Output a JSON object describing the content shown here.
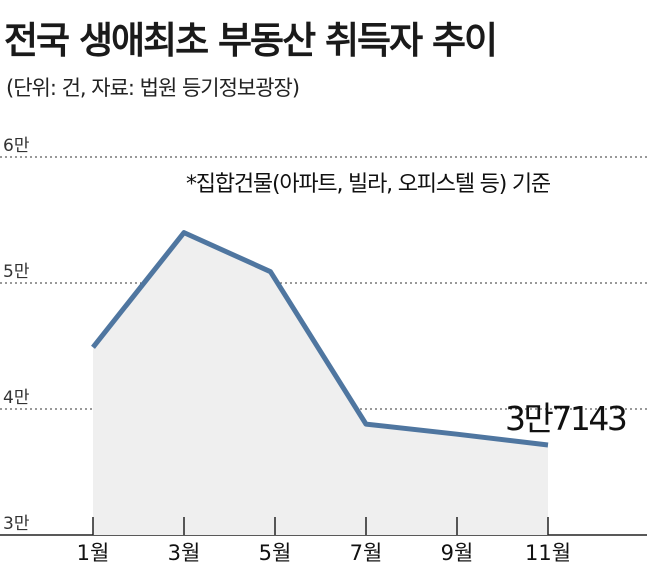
{
  "title": "전국 생애최초 부동산 취득자 추이",
  "subtitle": "(단위: 건, 자료: 법원 등기정보광장)",
  "chart_data": {
    "type": "area",
    "title": "전국 생애최초 부동산 취득자 추이",
    "subtitle": "(단위: 건, 자료: 법원 등기정보광장)",
    "note": "*집합건물(아파트, 빌라, 오피스텔 등) 기준",
    "categories": [
      "1월",
      "3월",
      "5월",
      "7월",
      "9월",
      "11월"
    ],
    "x_ticks": [
      "1월",
      "3월",
      "5월",
      "7월",
      "9월",
      "11월"
    ],
    "x": [
      1,
      3,
      4.9,
      7,
      9,
      11
    ],
    "values": [
      44900,
      54000,
      50900,
      38800,
      38000,
      37143
    ],
    "y_ticks": [
      {
        "value": 30000,
        "label": "3만"
      },
      {
        "value": 40000,
        "label": "4만"
      },
      {
        "value": 50000,
        "label": "5만"
      },
      {
        "value": 60000,
        "label": "6만"
      }
    ],
    "ylim": [
      30000,
      60000
    ],
    "xlim": [
      0.5,
      12.5
    ],
    "grid": "horizontal dotted",
    "annotation": {
      "text": "3만7143",
      "x": 11,
      "value": 37143
    },
    "colors": {
      "line": "#4f76a0",
      "fill": "#efefef",
      "grid": "#333333"
    }
  }
}
